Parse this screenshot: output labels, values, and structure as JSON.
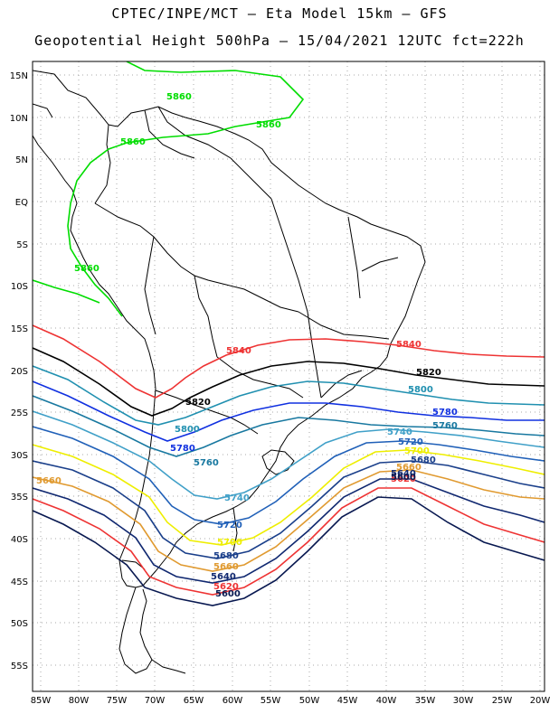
{
  "title_line1": "CPTEC/INPE/MCT –  Eta Model 15km – GFS",
  "title_line2": "Geopotential Height 500hPa – 15/04/2021 12UTC fct=222h",
  "lat_labels": [
    "15N",
    "10N",
    "5N",
    "EQ",
    "5S",
    "10S",
    "15S",
    "20S",
    "25S",
    "30S",
    "35S",
    "40S",
    "45S",
    "50S",
    "55S"
  ],
  "lon_labels": [
    "85W",
    "80W",
    "75W",
    "70W",
    "65W",
    "60W",
    "55W",
    "50W",
    "45W",
    "40W",
    "35W",
    "30W",
    "25W",
    "20W"
  ],
  "contours": [
    {
      "value": "5860",
      "color": "#00dd00"
    },
    {
      "value": "5840",
      "color": "#ee3333"
    },
    {
      "value": "5820",
      "color": "#000000"
    },
    {
      "value": "5800",
      "color": "#2090b0"
    },
    {
      "value": "5780",
      "color": "#1030e0"
    },
    {
      "value": "5760",
      "color": "#1878a0"
    },
    {
      "value": "5740",
      "color": "#40a0c8"
    },
    {
      "value": "5720",
      "color": "#2060b8"
    },
    {
      "value": "5700",
      "color": "#eeee00"
    },
    {
      "value": "5680",
      "color": "#1a3f8a"
    },
    {
      "value": "5660",
      "color": "#e09a30"
    },
    {
      "value": "5640",
      "color": "#102870"
    },
    {
      "value": "5620",
      "color": "#ee3333"
    },
    {
      "value": "5600",
      "color": "#081850"
    }
  ]
}
